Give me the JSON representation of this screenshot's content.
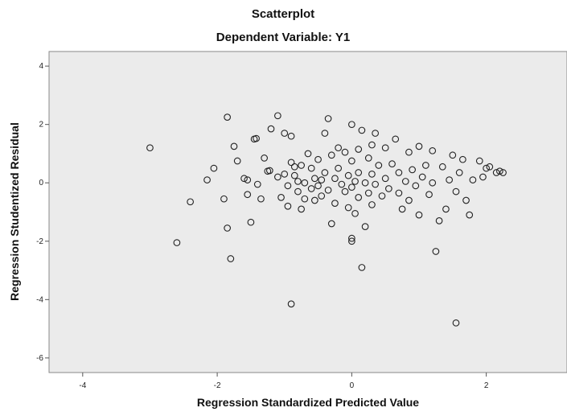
{
  "chart_data": {
    "type": "scatter",
    "title": "Scatterplot",
    "subtitle": "Dependent Variable: Y1",
    "xlabel": "Regression Standardized Predicted Value",
    "ylabel": "Regression Studentized Residual",
    "xlim": [
      -4.5,
      3.2
    ],
    "ylim": [
      -6.5,
      4.5
    ],
    "x_ticks": [
      -4,
      -2,
      0,
      2
    ],
    "y_ticks": [
      4,
      2,
      0,
      -2,
      -4,
      -6
    ],
    "grid": false,
    "plot_background": "#ebebeb",
    "marker": "open-circle",
    "points": [
      [
        -3.0,
        1.2
      ],
      [
        -2.6,
        -2.05
      ],
      [
        -2.4,
        -0.65
      ],
      [
        -2.15,
        0.1
      ],
      [
        -2.05,
        0.5
      ],
      [
        -1.9,
        -0.55
      ],
      [
        -1.85,
        2.25
      ],
      [
        -1.85,
        -1.55
      ],
      [
        -1.8,
        -2.6
      ],
      [
        -1.75,
        1.25
      ],
      [
        -1.7,
        0.75
      ],
      [
        -1.6,
        0.15
      ],
      [
        -1.55,
        0.1
      ],
      [
        -1.55,
        -0.4
      ],
      [
        -1.5,
        -1.35
      ],
      [
        -1.45,
        1.5
      ],
      [
        -1.42,
        1.52
      ],
      [
        -1.4,
        -0.05
      ],
      [
        -1.35,
        -0.55
      ],
      [
        -1.3,
        0.85
      ],
      [
        -1.25,
        0.4
      ],
      [
        -1.22,
        0.42
      ],
      [
        -1.2,
        1.85
      ],
      [
        -1.1,
        2.3
      ],
      [
        -1.1,
        0.2
      ],
      [
        -1.05,
        -0.5
      ],
      [
        -1.0,
        1.7
      ],
      [
        -1.0,
        0.3
      ],
      [
        -0.95,
        -0.1
      ],
      [
        -0.95,
        -0.8
      ],
      [
        -0.9,
        0.7
      ],
      [
        -0.9,
        1.6
      ],
      [
        -0.9,
        -4.15
      ],
      [
        -0.85,
        0.25
      ],
      [
        -0.85,
        0.55
      ],
      [
        -0.8,
        0.05
      ],
      [
        -0.8,
        -0.3
      ],
      [
        -0.75,
        -0.9
      ],
      [
        -0.75,
        0.6
      ],
      [
        -0.7,
        0.0
      ],
      [
        -0.7,
        -0.55
      ],
      [
        -0.65,
        1.0
      ],
      [
        -0.6,
        0.5
      ],
      [
        -0.6,
        -0.2
      ],
      [
        -0.55,
        0.15
      ],
      [
        -0.55,
        -0.6
      ],
      [
        -0.5,
        0.8
      ],
      [
        -0.5,
        -0.1
      ],
      [
        -0.45,
        0.1
      ],
      [
        -0.45,
        -0.45
      ],
      [
        -0.4,
        1.7
      ],
      [
        -0.4,
        0.35
      ],
      [
        -0.35,
        -0.25
      ],
      [
        -0.35,
        2.2
      ],
      [
        -0.3,
        -1.4
      ],
      [
        -0.3,
        0.95
      ],
      [
        -0.25,
        0.15
      ],
      [
        -0.25,
        -0.7
      ],
      [
        -0.2,
        1.2
      ],
      [
        -0.2,
        0.5
      ],
      [
        -0.15,
        -0.05
      ],
      [
        -0.1,
        1.05
      ],
      [
        -0.1,
        -0.3
      ],
      [
        -0.05,
        0.25
      ],
      [
        -0.05,
        -0.85
      ],
      [
        0.0,
        2.0
      ],
      [
        0.0,
        0.75
      ],
      [
        0.0,
        -0.15
      ],
      [
        0.0,
        -1.9
      ],
      [
        0.0,
        -2.0
      ],
      [
        0.05,
        0.05
      ],
      [
        0.05,
        -1.05
      ],
      [
        0.1,
        1.15
      ],
      [
        0.1,
        0.35
      ],
      [
        0.1,
        -0.5
      ],
      [
        0.15,
        -2.9
      ],
      [
        0.15,
        1.8
      ],
      [
        0.2,
        0.0
      ],
      [
        0.2,
        -1.5
      ],
      [
        0.25,
        0.85
      ],
      [
        0.25,
        -0.35
      ],
      [
        0.3,
        1.3
      ],
      [
        0.3,
        0.3
      ],
      [
        0.3,
        -0.75
      ],
      [
        0.35,
        1.7
      ],
      [
        0.35,
        -0.05
      ],
      [
        0.4,
        0.6
      ],
      [
        0.45,
        -0.45
      ],
      [
        0.5,
        0.15
      ],
      [
        0.5,
        1.2
      ],
      [
        0.55,
        -0.2
      ],
      [
        0.6,
        0.65
      ],
      [
        0.65,
        1.5
      ],
      [
        0.7,
        -0.35
      ],
      [
        0.7,
        0.35
      ],
      [
        0.75,
        -0.9
      ],
      [
        0.8,
        0.05
      ],
      [
        0.85,
        1.05
      ],
      [
        0.85,
        -0.6
      ],
      [
        0.9,
        0.45
      ],
      [
        0.95,
        -0.1
      ],
      [
        1.0,
        1.25
      ],
      [
        1.0,
        -1.1
      ],
      [
        1.05,
        0.2
      ],
      [
        1.1,
        0.6
      ],
      [
        1.15,
        -0.4
      ],
      [
        1.2,
        1.1
      ],
      [
        1.2,
        0.0
      ],
      [
        1.25,
        -2.35
      ],
      [
        1.3,
        -1.3
      ],
      [
        1.35,
        0.55
      ],
      [
        1.4,
        -0.9
      ],
      [
        1.45,
        0.1
      ],
      [
        1.5,
        0.95
      ],
      [
        1.55,
        -4.8
      ],
      [
        1.55,
        -0.3
      ],
      [
        1.6,
        0.35
      ],
      [
        1.65,
        0.8
      ],
      [
        1.7,
        -0.6
      ],
      [
        1.75,
        -1.1
      ],
      [
        1.8,
        0.1
      ],
      [
        1.9,
        0.75
      ],
      [
        1.95,
        0.2
      ],
      [
        2.0,
        0.5
      ],
      [
        2.05,
        0.55
      ],
      [
        2.15,
        0.35
      ],
      [
        2.2,
        0.4
      ],
      [
        2.25,
        0.35
      ]
    ]
  }
}
